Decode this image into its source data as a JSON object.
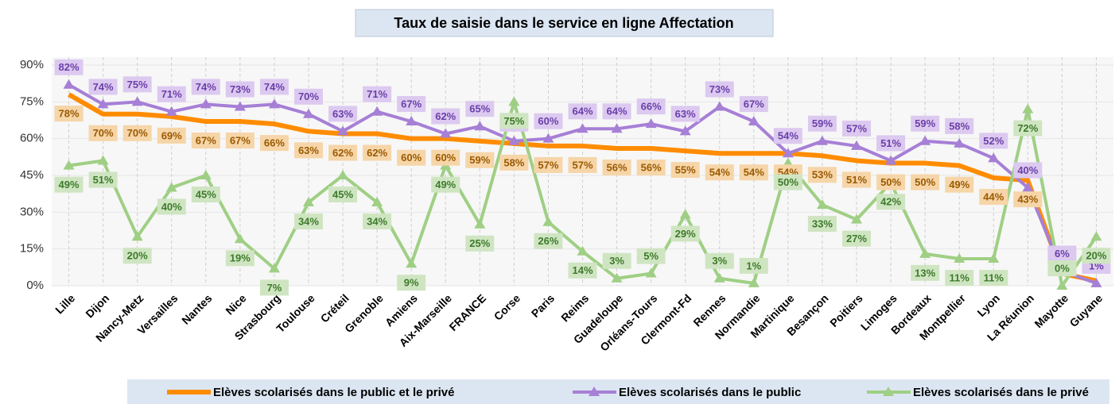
{
  "chart_data": {
    "type": "line",
    "title": "Taux de saisie dans le service en ligne Affectation",
    "categories": [
      "Lille",
      "Dijon",
      "Nancy-Metz",
      "Versailles",
      "Nantes",
      "Nice",
      "Strasbourg",
      "Toulouse",
      "Créteil",
      "Grenoble",
      "Amiens",
      "Aix-Marseille",
      "FRANCE",
      "Corse",
      "Paris",
      "Reims",
      "Guadeloupe",
      "Orléans-Tours",
      "Clermont-Fd",
      "Rennes",
      "Normandie",
      "Martinique",
      "Besançon",
      "Poitiers",
      "Limoges",
      "Bordeaux",
      "Montpellier",
      "Lyon",
      "La Réunion",
      "Mayotte",
      "Guyane"
    ],
    "series": [
      {
        "name": "Elèves scolarisés dans le public et le privé",
        "color": "#ff8c00",
        "values": [
          78,
          70,
          70,
          69,
          67,
          67,
          66,
          63,
          62,
          62,
          60,
          60,
          59,
          58,
          57,
          57,
          56,
          56,
          55,
          54,
          54,
          54,
          53,
          51,
          50,
          50,
          49,
          44,
          43,
          5,
          2
        ],
        "value_labels": [
          "78%",
          "70%",
          "70%",
          "69%",
          "67%",
          "67%",
          "66%",
          "63%",
          "62%",
          "62%",
          "60%",
          "60%",
          "59%",
          "58%",
          "57%",
          "57%",
          "56%",
          "56%",
          "55%",
          "54%",
          "54%",
          "54%",
          "53%",
          "51%",
          "50%",
          "50%",
          "49%",
          "44%",
          "43%",
          "5%",
          "2%"
        ]
      },
      {
        "name": "Elèves scolarisés dans le public",
        "color": "#a67fd6",
        "values": [
          82,
          74,
          75,
          71,
          74,
          73,
          74,
          70,
          63,
          71,
          67,
          62,
          65,
          59,
          60,
          64,
          64,
          66,
          63,
          73,
          67,
          54,
          59,
          57,
          51,
          59,
          58,
          52,
          40,
          6,
          1
        ],
        "value_labels": [
          "82%",
          "74%",
          "75%",
          "71%",
          "74%",
          "73%",
          "74%",
          "70%",
          "63%",
          "71%",
          "67%",
          "62%",
          "65%",
          "59%",
          "60%",
          "64%",
          "64%",
          "66%",
          "63%",
          "73%",
          "67%",
          "54%",
          "59%",
          "57%",
          "51%",
          "59%",
          "58%",
          "52%",
          "40%",
          "6%",
          "1%"
        ]
      },
      {
        "name": "Elèves scolarisés dans le privé",
        "color": "#9fcf84",
        "values": [
          49,
          51,
          20,
          40,
          45,
          19,
          7,
          34,
          45,
          34,
          9,
          49,
          25,
          75,
          26,
          14,
          3,
          5,
          29,
          3,
          1,
          50,
          33,
          27,
          42,
          13,
          11,
          11,
          72,
          0,
          20
        ],
        "value_labels": [
          "49%",
          "51%",
          "20%",
          "40%",
          "45%",
          "19%",
          "7%",
          "34%",
          "45%",
          "34%",
          "9%",
          "49%",
          "25%",
          "75%",
          "26%",
          "14%",
          "3%",
          "5%",
          "29%",
          "3%",
          "1%",
          "50%",
          "33%",
          "27%",
          "42%",
          "13%",
          "11%",
          "11%",
          "72%",
          "0%",
          "20%"
        ]
      }
    ],
    "ylim": [
      0,
      90
    ],
    "yticks": [
      {
        "value": 0,
        "label": "0%"
      },
      {
        "value": 15,
        "label": "15%"
      },
      {
        "value": 30,
        "label": "30%"
      },
      {
        "value": 45,
        "label": "45%"
      },
      {
        "value": 60,
        "label": "60%"
      },
      {
        "value": 75,
        "label": "75%"
      },
      {
        "value": 90,
        "label": "90%"
      }
    ],
    "grid": true
  }
}
